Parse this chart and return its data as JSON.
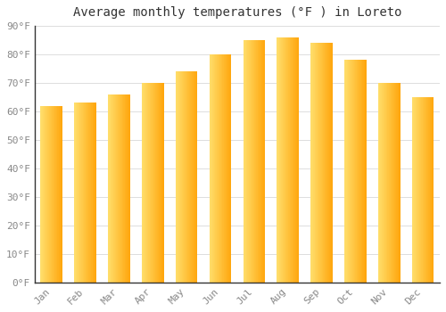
{
  "title": "Average monthly temperatures (°F ) in Loreto",
  "months": [
    "Jan",
    "Feb",
    "Mar",
    "Apr",
    "May",
    "Jun",
    "Jul",
    "Aug",
    "Sep",
    "Oct",
    "Nov",
    "Dec"
  ],
  "values": [
    62,
    63,
    66,
    70,
    74,
    80,
    85,
    86,
    84,
    78,
    70,
    65
  ],
  "bar_color_left": "#FFD966",
  "bar_color_right": "#FFA500",
  "background_color": "#FFFFFF",
  "ylim": [
    0,
    90
  ],
  "yticks": [
    0,
    10,
    20,
    30,
    40,
    50,
    60,
    70,
    80,
    90
  ],
  "ytick_labels": [
    "0°F",
    "10°F",
    "20°F",
    "30°F",
    "40°F",
    "50°F",
    "60°F",
    "70°F",
    "80°F",
    "90°F"
  ],
  "title_fontsize": 10,
  "tick_fontsize": 8,
  "grid_color": "#DDDDDD",
  "axis_color": "#333333",
  "tick_color": "#888888"
}
